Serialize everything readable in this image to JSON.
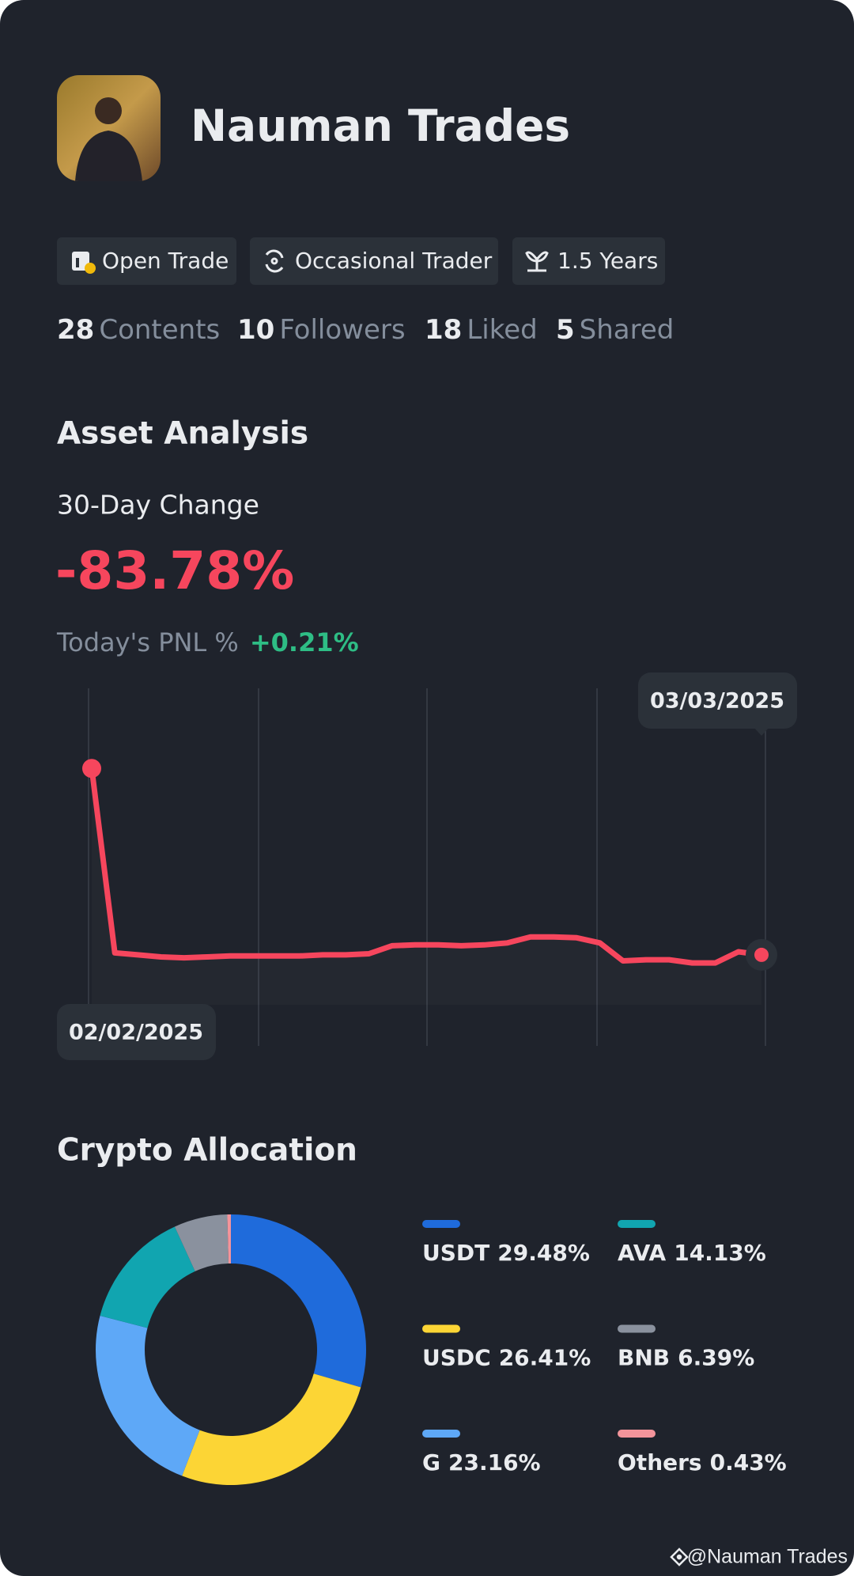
{
  "profile": {
    "name": "Nauman Trades",
    "badges": [
      "Open Trade",
      "Occasional Trader",
      "1.5 Years"
    ],
    "stats": [
      {
        "value": 28,
        "label": "Contents"
      },
      {
        "value": 10,
        "label": "Followers"
      },
      {
        "value": 18,
        "label": "Liked"
      },
      {
        "value": 5,
        "label": "Shared"
      }
    ]
  },
  "asset_analysis": {
    "title": "Asset Analysis",
    "change_label": "30-Day Change",
    "change": "-83.78%",
    "pnl_label": "Today's PNL %",
    "pnl": "+0.21%",
    "chart_data": {
      "type": "line",
      "categories": [
        "02/02/2025",
        null,
        null,
        null,
        null,
        null,
        null,
        null,
        null,
        null,
        null,
        null,
        null,
        null,
        null,
        null,
        null,
        null,
        null,
        null,
        null,
        null,
        null,
        null,
        null,
        null,
        null,
        null,
        null,
        "03/03/2025"
      ],
      "values": [
        0,
        -82.9,
        -83.8,
        -84.7,
        -85.1,
        -84.7,
        -84.3,
        -84.3,
        -84.3,
        -84.3,
        -83.8,
        -83.8,
        -83.3,
        -79.7,
        -79.3,
        -79.3,
        -79.7,
        -79.3,
        -78.4,
        -75.7,
        -75.7,
        -76.1,
        -78.4,
        -86.5,
        -86.0,
        -86.0,
        -87.4,
        -87.4,
        -82.4,
        -83.78
      ],
      "color": "#f6465d",
      "ylim": [
        -124,
        36
      ]
    }
  },
  "crypto_allocation": {
    "title": "Crypto Allocation",
    "chart_data": {
      "type": "donut",
      "categories": [
        "USDT",
        "USDC",
        "G",
        "AVA",
        "BNB",
        "Others"
      ],
      "values": [
        29.48,
        26.41,
        23.16,
        14.13,
        6.39,
        0.43
      ],
      "value_labels": [
        "29.48%",
        "26.41%",
        "23.16%",
        "14.13%",
        "6.39%",
        "0.43%"
      ],
      "colors": [
        "#1f6bdb",
        "#fcd535",
        "#5ea8f7",
        "#11a5b0",
        "#8a919e",
        "#f3949b"
      ]
    }
  },
  "footer": "@Nauman Trades"
}
